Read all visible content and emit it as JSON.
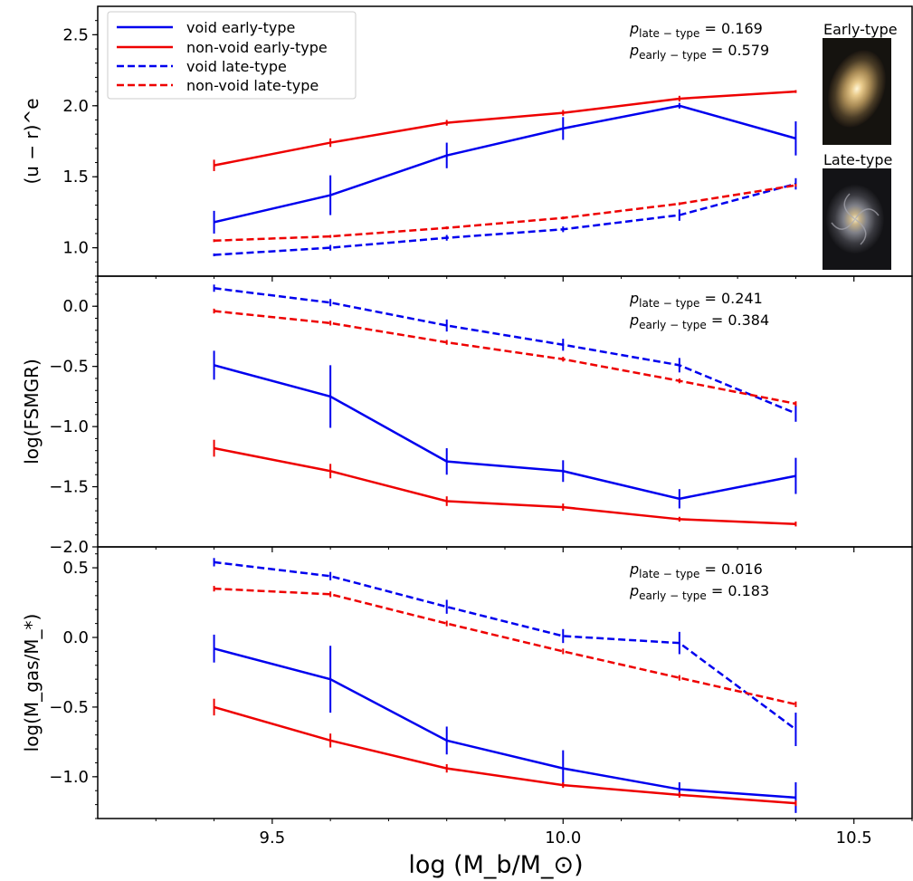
{
  "chart_data": {
    "type": "line",
    "xlabel": "log (M_b/M_⊙)",
    "xlim": [
      9.2,
      10.6
    ],
    "x_ticks": [
      "9.5",
      "10.0",
      "10.5"
    ],
    "x": [
      9.4,
      9.6,
      9.8,
      10.0,
      10.2,
      10.4
    ],
    "legend": {
      "placement": "top-left of top panel",
      "entries": [
        {
          "name": "void early-type",
          "color": "#0000ee",
          "style": "solid"
        },
        {
          "name": "non-void early-type",
          "color": "#ee0000",
          "style": "solid"
        },
        {
          "name": "void late-type",
          "color": "#0000ee",
          "style": "dashed"
        },
        {
          "name": "non-void late-type",
          "color": "#ee0000",
          "style": "dashed"
        }
      ]
    },
    "thumbnails": [
      {
        "label": "Early-type"
      },
      {
        "label": "Late-type"
      }
    ],
    "panels": [
      {
        "ylabel": "(u − r)^e",
        "ylim": [
          0.8,
          2.7
        ],
        "y_ticks": [
          "1.0",
          "1.5",
          "2.0",
          "2.5"
        ],
        "annotations": [
          {
            "key": "p",
            "subscript": "late − type",
            "value": "0.169"
          },
          {
            "key": "p",
            "subscript": "early − type",
            "value": "0.579"
          }
        ],
        "series": [
          {
            "name": "void early-type",
            "values": [
              1.18,
              1.37,
              1.65,
              1.84,
              2.0,
              1.77
            ],
            "err": [
              0.08,
              0.14,
              0.09,
              0.08,
              0.02,
              0.12
            ]
          },
          {
            "name": "non-void early-type",
            "values": [
              1.58,
              1.74,
              1.88,
              1.95,
              2.05,
              2.1
            ],
            "err": [
              0.04,
              0.03,
              0.02,
              0.02,
              0.02,
              0.01
            ]
          },
          {
            "name": "void late-type",
            "values": [
              0.95,
              1.0,
              1.07,
              1.13,
              1.23,
              1.45
            ],
            "err": [
              0.01,
              0.02,
              0.02,
              0.02,
              0.04,
              0.04
            ]
          },
          {
            "name": "non-void late-type",
            "values": [
              1.05,
              1.08,
              1.14,
              1.21,
              1.31,
              1.44
            ],
            "err": [
              0.01,
              0.01,
              0.01,
              0.01,
              0.01,
              0.01
            ]
          }
        ]
      },
      {
        "ylabel": "log(FSMGR)",
        "ylim": [
          -2.0,
          0.25
        ],
        "y_ticks": [
          "−2.0",
          "−1.5",
          "−1.0",
          "−0.5",
          "0.0"
        ],
        "annotations": [
          {
            "key": "p",
            "subscript": "late − type",
            "value": "0.241"
          },
          {
            "key": "p",
            "subscript": "early − type",
            "value": "0.384"
          }
        ],
        "series": [
          {
            "name": "void early-type",
            "values": [
              -0.49,
              -0.75,
              -1.29,
              -1.37,
              -1.6,
              -1.41
            ],
            "err": [
              0.12,
              0.26,
              0.11,
              0.09,
              0.08,
              0.15
            ]
          },
          {
            "name": "non-void early-type",
            "values": [
              -1.18,
              -1.37,
              -1.62,
              -1.67,
              -1.77,
              -1.81
            ],
            "err": [
              0.07,
              0.06,
              0.04,
              0.03,
              0.02,
              0.02
            ]
          },
          {
            "name": "void late-type",
            "values": [
              0.15,
              0.03,
              -0.16,
              -0.32,
              -0.49,
              -0.89
            ],
            "err": [
              0.03,
              0.03,
              0.05,
              0.05,
              0.06,
              0.07
            ]
          },
          {
            "name": "non-void late-type",
            "values": [
              -0.04,
              -0.14,
              -0.3,
              -0.44,
              -0.62,
              -0.81
            ],
            "err": [
              0.02,
              0.02,
              0.02,
              0.02,
              0.02,
              0.02
            ]
          }
        ]
      },
      {
        "ylabel": "log(M_gas/M_*)",
        "ylim": [
          -1.3,
          0.65
        ],
        "y_ticks": [
          "−1.0",
          "−0.5",
          "0.0",
          "0.5"
        ],
        "annotations": [
          {
            "key": "p",
            "subscript": "late − type",
            "value": "0.016"
          },
          {
            "key": "p",
            "subscript": "early − type",
            "value": "0.183"
          }
        ],
        "series": [
          {
            "name": "void early-type",
            "values": [
              -0.08,
              -0.3,
              -0.74,
              -0.94,
              -1.09,
              -1.15
            ],
            "err": [
              0.1,
              0.24,
              0.1,
              0.13,
              0.05,
              0.11
            ]
          },
          {
            "name": "non-void early-type",
            "values": [
              -0.5,
              -0.74,
              -0.94,
              -1.06,
              -1.13,
              -1.19
            ],
            "err": [
              0.06,
              0.05,
              0.03,
              0.02,
              0.02,
              0.02
            ]
          },
          {
            "name": "void late-type",
            "values": [
              0.54,
              0.44,
              0.22,
              0.01,
              -0.04,
              -0.66
            ],
            "err": [
              0.03,
              0.03,
              0.05,
              0.05,
              0.08,
              0.12
            ]
          },
          {
            "name": "non-void late-type",
            "values": [
              0.35,
              0.31,
              0.1,
              -0.1,
              -0.29,
              -0.48
            ],
            "err": [
              0.02,
              0.02,
              0.02,
              0.02,
              0.02,
              0.02
            ]
          }
        ]
      }
    ]
  }
}
